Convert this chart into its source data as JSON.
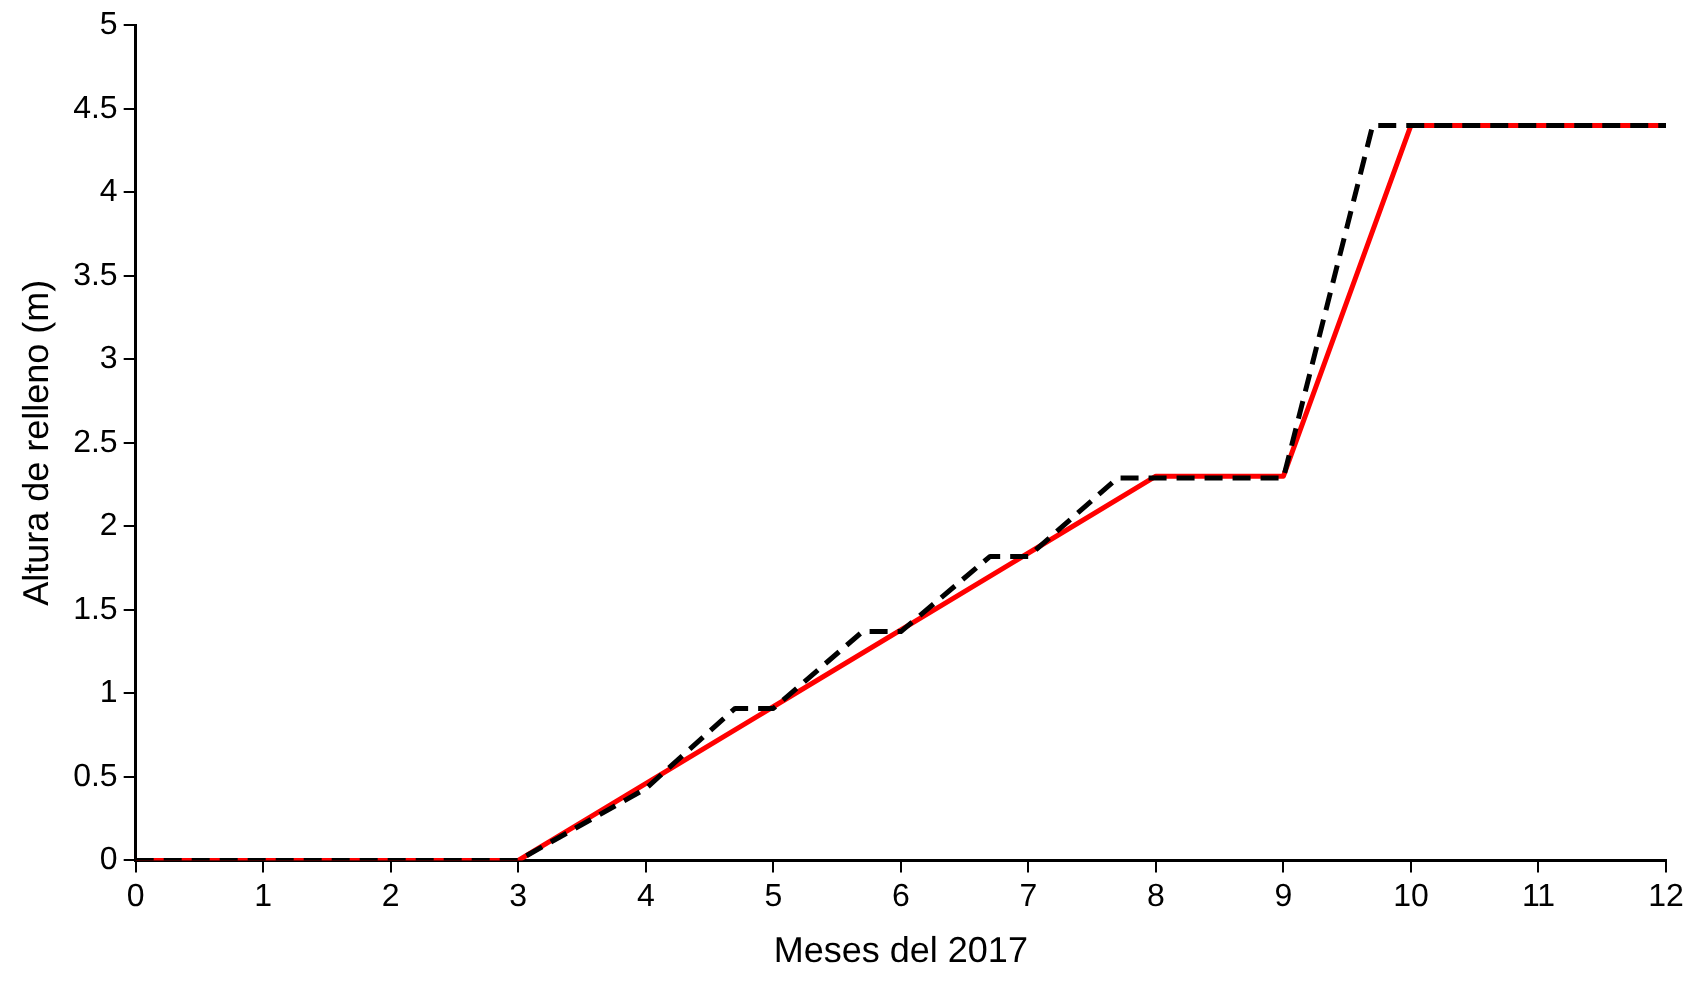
{
  "chart_data": {
    "type": "line",
    "xlabel": "Meses del 2017",
    "ylabel": "Altura de relleno (m)",
    "xlim": [
      0,
      12
    ],
    "xticks": [
      0,
      1,
      2,
      3,
      4,
      5,
      6,
      7,
      8,
      9,
      10,
      11,
      12
    ],
    "ylim": [
      0,
      5
    ],
    "yticks": [
      0,
      0.5,
      1,
      1.5,
      2,
      2.5,
      3,
      3.5,
      4,
      4.5,
      5
    ],
    "grid": false,
    "legend": false,
    "marker": "none",
    "series": [
      {
        "color": "#ff0000",
        "line_style": "solid",
        "x": [
          0,
          3,
          8,
          9,
          10,
          12
        ],
        "values": [
          0,
          0,
          2.3,
          2.3,
          4.4,
          4.4
        ]
      },
      {
        "color": "#000000",
        "line_style": "dashed",
        "x": [
          0,
          3,
          4,
          4.7,
          5,
          5.7,
          6,
          6.7,
          7,
          7.7,
          9,
          9.7,
          12
        ],
        "values": [
          0,
          0,
          0.43,
          0.91,
          0.91,
          1.37,
          1.37,
          1.82,
          1.82,
          2.29,
          2.29,
          4.4,
          4.4
        ]
      }
    ]
  }
}
